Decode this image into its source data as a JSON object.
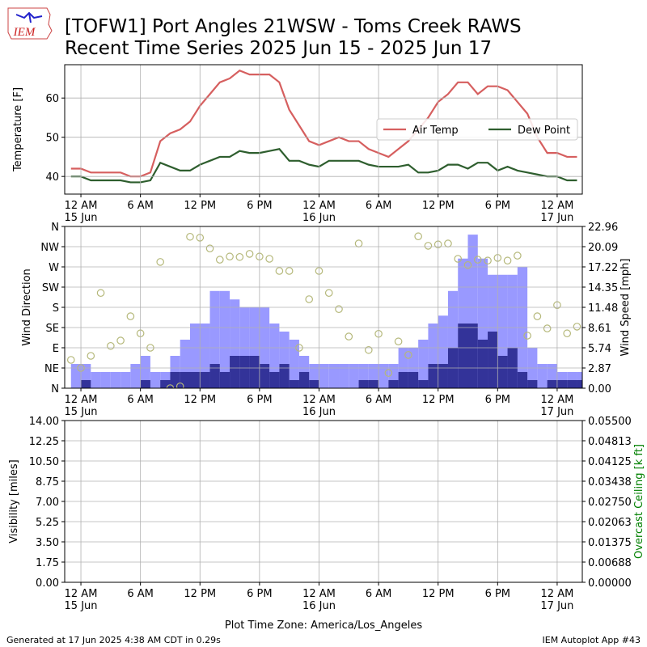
{
  "logo_text": "IEM",
  "title_lines": [
    "[TOFW1] Port Angles 21WSW - Toms Creek RAWS",
    "Recent Time Series 2025 Jun 15 - 2025 Jun 17"
  ],
  "xlabel": "Plot Time Zone: America/Los_Angeles",
  "footer_left": "Generated at 17 Jun 2025 4:38 AM CDT in 0.29s",
  "footer_right": "IEM Autoplot App #43",
  "chart_data": [
    {
      "type": "line",
      "ylabel": "Temperature [F]",
      "grid": true,
      "legend": "center right",
      "xlim": [
        "2025-06-14T22:22",
        "2025-06-17T02:32"
      ],
      "xticks": [
        {
          "value": "2025-06-15T00:00",
          "label": "12 AM\n15 Jun"
        },
        {
          "value": "2025-06-15T06:00",
          "label": "6 AM"
        },
        {
          "value": "2025-06-15T12:00",
          "label": "12 PM"
        },
        {
          "value": "2025-06-15T18:00",
          "label": "6 PM"
        },
        {
          "value": "2025-06-16T00:00",
          "label": "12 AM\n16 Jun"
        },
        {
          "value": "2025-06-16T06:00",
          "label": "6 AM"
        },
        {
          "value": "2025-06-16T12:00",
          "label": "12 PM"
        },
        {
          "value": "2025-06-16T18:00",
          "label": "6 PM"
        },
        {
          "value": "2025-06-17T00:00",
          "label": "12 AM\n17 Jun"
        }
      ],
      "ylim": [
        35.5,
        68.5
      ],
      "yticks": [
        40,
        50,
        60
      ],
      "x": [
        "2025-06-14T23:00",
        "2025-06-15T00:00",
        "2025-06-15T01:00",
        "2025-06-15T02:00",
        "2025-06-15T03:00",
        "2025-06-15T04:00",
        "2025-06-15T05:00",
        "2025-06-15T06:00",
        "2025-06-15T07:00",
        "2025-06-15T08:00",
        "2025-06-15T09:00",
        "2025-06-15T10:00",
        "2025-06-15T11:00",
        "2025-06-15T12:00",
        "2025-06-15T13:00",
        "2025-06-15T14:00",
        "2025-06-15T15:00",
        "2025-06-15T16:00",
        "2025-06-15T17:00",
        "2025-06-15T18:00",
        "2025-06-15T19:00",
        "2025-06-15T20:00",
        "2025-06-15T21:00",
        "2025-06-15T22:00",
        "2025-06-15T23:00",
        "2025-06-16T00:00",
        "2025-06-16T01:00",
        "2025-06-16T02:00",
        "2025-06-16T03:00",
        "2025-06-16T04:00",
        "2025-06-16T05:00",
        "2025-06-16T06:00",
        "2025-06-16T07:00",
        "2025-06-16T08:00",
        "2025-06-16T09:00",
        "2025-06-16T10:00",
        "2025-06-16T11:00",
        "2025-06-16T12:00",
        "2025-06-16T13:00",
        "2025-06-16T14:00",
        "2025-06-16T15:00",
        "2025-06-16T16:00",
        "2025-06-16T17:00",
        "2025-06-16T18:00",
        "2025-06-16T19:00",
        "2025-06-16T20:00",
        "2025-06-16T21:00",
        "2025-06-16T22:00",
        "2025-06-16T23:00",
        "2025-06-17T00:00",
        "2025-06-17T01:00",
        "2025-06-17T02:00"
      ],
      "series": [
        {
          "name": "Air Temp",
          "color": "#d65f5f",
          "values": [
            42,
            42,
            41,
            41,
            41,
            41,
            40,
            40,
            41,
            49,
            51,
            52,
            54,
            58,
            61,
            64,
            65,
            67,
            66,
            66,
            66,
            64,
            57,
            53,
            49,
            48,
            49,
            50,
            49,
            49,
            47,
            46,
            45,
            47,
            49,
            52,
            55,
            59,
            61,
            64,
            64,
            61,
            63,
            63,
            62,
            59,
            56,
            50,
            46,
            46,
            45,
            45
          ]
        },
        {
          "name": "Dew Point",
          "color": "#2e5e2e",
          "values": [
            40,
            40,
            39,
            39,
            39,
            39,
            38.5,
            38.5,
            39,
            43.5,
            42.5,
            41.5,
            41.5,
            43,
            44,
            45,
            45,
            46.5,
            46,
            46,
            46.5,
            47,
            44,
            44,
            43,
            42.5,
            44,
            44,
            44,
            44,
            43,
            42.5,
            42.5,
            42.5,
            43,
            41,
            41,
            41.5,
            43,
            43,
            42,
            43.5,
            43.5,
            41.5,
            42.5,
            41.5,
            41,
            40.5,
            40,
            40,
            39,
            39
          ]
        }
      ]
    },
    {
      "type": "combo",
      "ylabel": "Wind Direction",
      "y2label": "Wind Speed [mph]",
      "grid": true,
      "xlim": [
        "2025-06-14T22:22",
        "2025-06-17T02:32"
      ],
      "xticks": [
        {
          "value": "2025-06-15T00:00",
          "label": "12 AM\n15 Jun"
        },
        {
          "value": "2025-06-15T06:00",
          "label": "6 AM"
        },
        {
          "value": "2025-06-15T12:00",
          "label": "12 PM"
        },
        {
          "value": "2025-06-15T18:00",
          "label": "6 PM"
        },
        {
          "value": "2025-06-16T00:00",
          "label": "12 AM\n16 Jun"
        },
        {
          "value": "2025-06-16T06:00",
          "label": "6 AM"
        },
        {
          "value": "2025-06-16T12:00",
          "label": "12 PM"
        },
        {
          "value": "2025-06-16T18:00",
          "label": "6 PM"
        },
        {
          "value": "2025-06-17T00:00",
          "label": "12 AM\n17 Jun"
        }
      ],
      "ylim": [
        0,
        360
      ],
      "yticks": [
        {
          "value": 0,
          "label": "N"
        },
        {
          "value": 45,
          "label": "NE"
        },
        {
          "value": 90,
          "label": "E"
        },
        {
          "value": 135,
          "label": "SE"
        },
        {
          "value": 180,
          "label": "S"
        },
        {
          "value": 225,
          "label": "SW"
        },
        {
          "value": 270,
          "label": "W"
        },
        {
          "value": 315,
          "label": "NW"
        },
        {
          "value": 360,
          "label": "N"
        }
      ],
      "y2lim": [
        0,
        22.96
      ],
      "y2ticks": [
        {
          "value": 0,
          "label": "0.00"
        },
        2.87,
        5.74,
        8.61,
        11.48,
        14.35,
        17.22,
        20.09,
        22.96
      ],
      "x": [
        "2025-06-14T23:00",
        "2025-06-15T00:00",
        "2025-06-15T01:00",
        "2025-06-15T02:00",
        "2025-06-15T03:00",
        "2025-06-15T04:00",
        "2025-06-15T05:00",
        "2025-06-15T06:00",
        "2025-06-15T07:00",
        "2025-06-15T08:00",
        "2025-06-15T09:00",
        "2025-06-15T10:00",
        "2025-06-15T11:00",
        "2025-06-15T12:00",
        "2025-06-15T13:00",
        "2025-06-15T14:00",
        "2025-06-15T15:00",
        "2025-06-15T16:00",
        "2025-06-15T17:00",
        "2025-06-15T18:00",
        "2025-06-15T19:00",
        "2025-06-15T20:00",
        "2025-06-15T21:00",
        "2025-06-15T22:00",
        "2025-06-15T23:00",
        "2025-06-16T00:00",
        "2025-06-16T01:00",
        "2025-06-16T02:00",
        "2025-06-16T03:00",
        "2025-06-16T04:00",
        "2025-06-16T05:00",
        "2025-06-16T06:00",
        "2025-06-16T07:00",
        "2025-06-16T08:00",
        "2025-06-16T09:00",
        "2025-06-16T10:00",
        "2025-06-16T11:00",
        "2025-06-16T12:00",
        "2025-06-16T13:00",
        "2025-06-16T14:00",
        "2025-06-16T15:00",
        "2025-06-16T16:00",
        "2025-06-16T17:00",
        "2025-06-16T18:00",
        "2025-06-16T19:00",
        "2025-06-16T20:00",
        "2025-06-16T21:00",
        "2025-06-16T22:00",
        "2025-06-16T23:00",
        "2025-06-17T00:00",
        "2025-06-17T01:00",
        "2025-06-17T02:00"
      ],
      "series": [
        {
          "type": "step",
          "axis": "y2",
          "color": "#9999ff",
          "values": [
            3.44,
            3.44,
            2.3,
            2.3,
            2.3,
            2.3,
            3.44,
            4.59,
            2.3,
            2.3,
            4.59,
            6.89,
            9.18,
            9.18,
            13.8,
            13.8,
            12.6,
            11.5,
            11.5,
            11.5,
            9.18,
            8.04,
            6.89,
            4.59,
            3.44,
            3.44,
            3.44,
            3.44,
            3.44,
            3.44,
            3.44,
            3.44,
            3.44,
            5.74,
            5.74,
            6.89,
            9.18,
            10.3,
            13.8,
            18.4,
            21.8,
            18.4,
            16.1,
            16.1,
            16.1,
            17.2,
            5.74,
            3.44,
            3.44,
            2.3,
            2.3,
            2.3
          ]
        },
        {
          "type": "step",
          "axis": "y2",
          "color": "#333399",
          "values": [
            0,
            1.15,
            0,
            0,
            0,
            0,
            0,
            1.15,
            0,
            1.15,
            2.3,
            2.3,
            2.3,
            2.3,
            3.44,
            2.3,
            4.59,
            4.59,
            4.59,
            3.44,
            2.3,
            3.44,
            1.15,
            2.3,
            1.15,
            0,
            0,
            0,
            0,
            1.15,
            1.15,
            0,
            1.15,
            2.3,
            2.3,
            1.15,
            3.44,
            3.44,
            5.74,
            9.18,
            9.18,
            6.89,
            8.04,
            4.59,
            5.74,
            2.3,
            1.15,
            0,
            1.15,
            1.15,
            1.15,
            1.15
          ]
        },
        {
          "type": "scatter",
          "color": "#b5b87a",
          "values": [
            63,
            45,
            72,
            212,
            94,
            106,
            160,
            122,
            90,
            281,
            0,
            4,
            337,
            335,
            311,
            286,
            293,
            292,
            299,
            293,
            288,
            261,
            261,
            90,
            198,
            261,
            212,
            176,
            115,
            322,
            85,
            121,
            34,
            104,
            74,
            338,
            317,
            320,
            322,
            288,
            274,
            286,
            284,
            290,
            284,
            295,
            117,
            160,
            133,
            185,
            122,
            137
          ]
        }
      ]
    },
    {
      "type": "line",
      "ylabel": "Visibility [miles]",
      "y2label": "Overcast Ceiling [k ft]",
      "y2label_color": "#008000",
      "grid": true,
      "xlim": [
        "2025-06-14T22:22",
        "2025-06-17T02:32"
      ],
      "xticks": [
        {
          "value": "2025-06-15T00:00",
          "label": "12 AM\n15 Jun"
        },
        {
          "value": "2025-06-15T06:00",
          "label": "6 AM"
        },
        {
          "value": "2025-06-15T12:00",
          "label": "12 PM"
        },
        {
          "value": "2025-06-15T18:00",
          "label": "6 PM"
        },
        {
          "value": "2025-06-16T00:00",
          "label": "12 AM\n16 Jun"
        },
        {
          "value": "2025-06-16T06:00",
          "label": "6 AM"
        },
        {
          "value": "2025-06-16T12:00",
          "label": "12 PM"
        },
        {
          "value": "2025-06-16T18:00",
          "label": "6 PM"
        },
        {
          "value": "2025-06-17T00:00",
          "label": "12 AM\n17 Jun"
        }
      ],
      "ylim": [
        0,
        14
      ],
      "yticks": [
        {
          "value": 0,
          "label": "0.00"
        },
        1.75,
        {
          "value": 3.5,
          "label": "3.50"
        },
        5.25,
        {
          "value": 7,
          "label": "7.00"
        },
        8.75,
        {
          "value": 10.5,
          "label": "10.50"
        },
        12.25,
        {
          "value": 14,
          "label": "14.00"
        }
      ],
      "y2lim": [
        0,
        0.055
      ],
      "y2ticks": [
        {
          "value": 0,
          "label": "0.00000"
        },
        {
          "value": 0.006875,
          "label": "0.00688"
        },
        {
          "value": 0.01375,
          "label": "0.01375"
        },
        {
          "value": 0.020625,
          "label": "0.02063"
        },
        {
          "value": 0.0275,
          "label": "0.02750"
        },
        {
          "value": 0.034375,
          "label": "0.03438"
        },
        {
          "value": 0.04125,
          "label": "0.04125"
        },
        {
          "value": 0.048125,
          "label": "0.04813"
        },
        {
          "value": 0.055,
          "label": "0.05500"
        }
      ],
      "series": []
    }
  ]
}
